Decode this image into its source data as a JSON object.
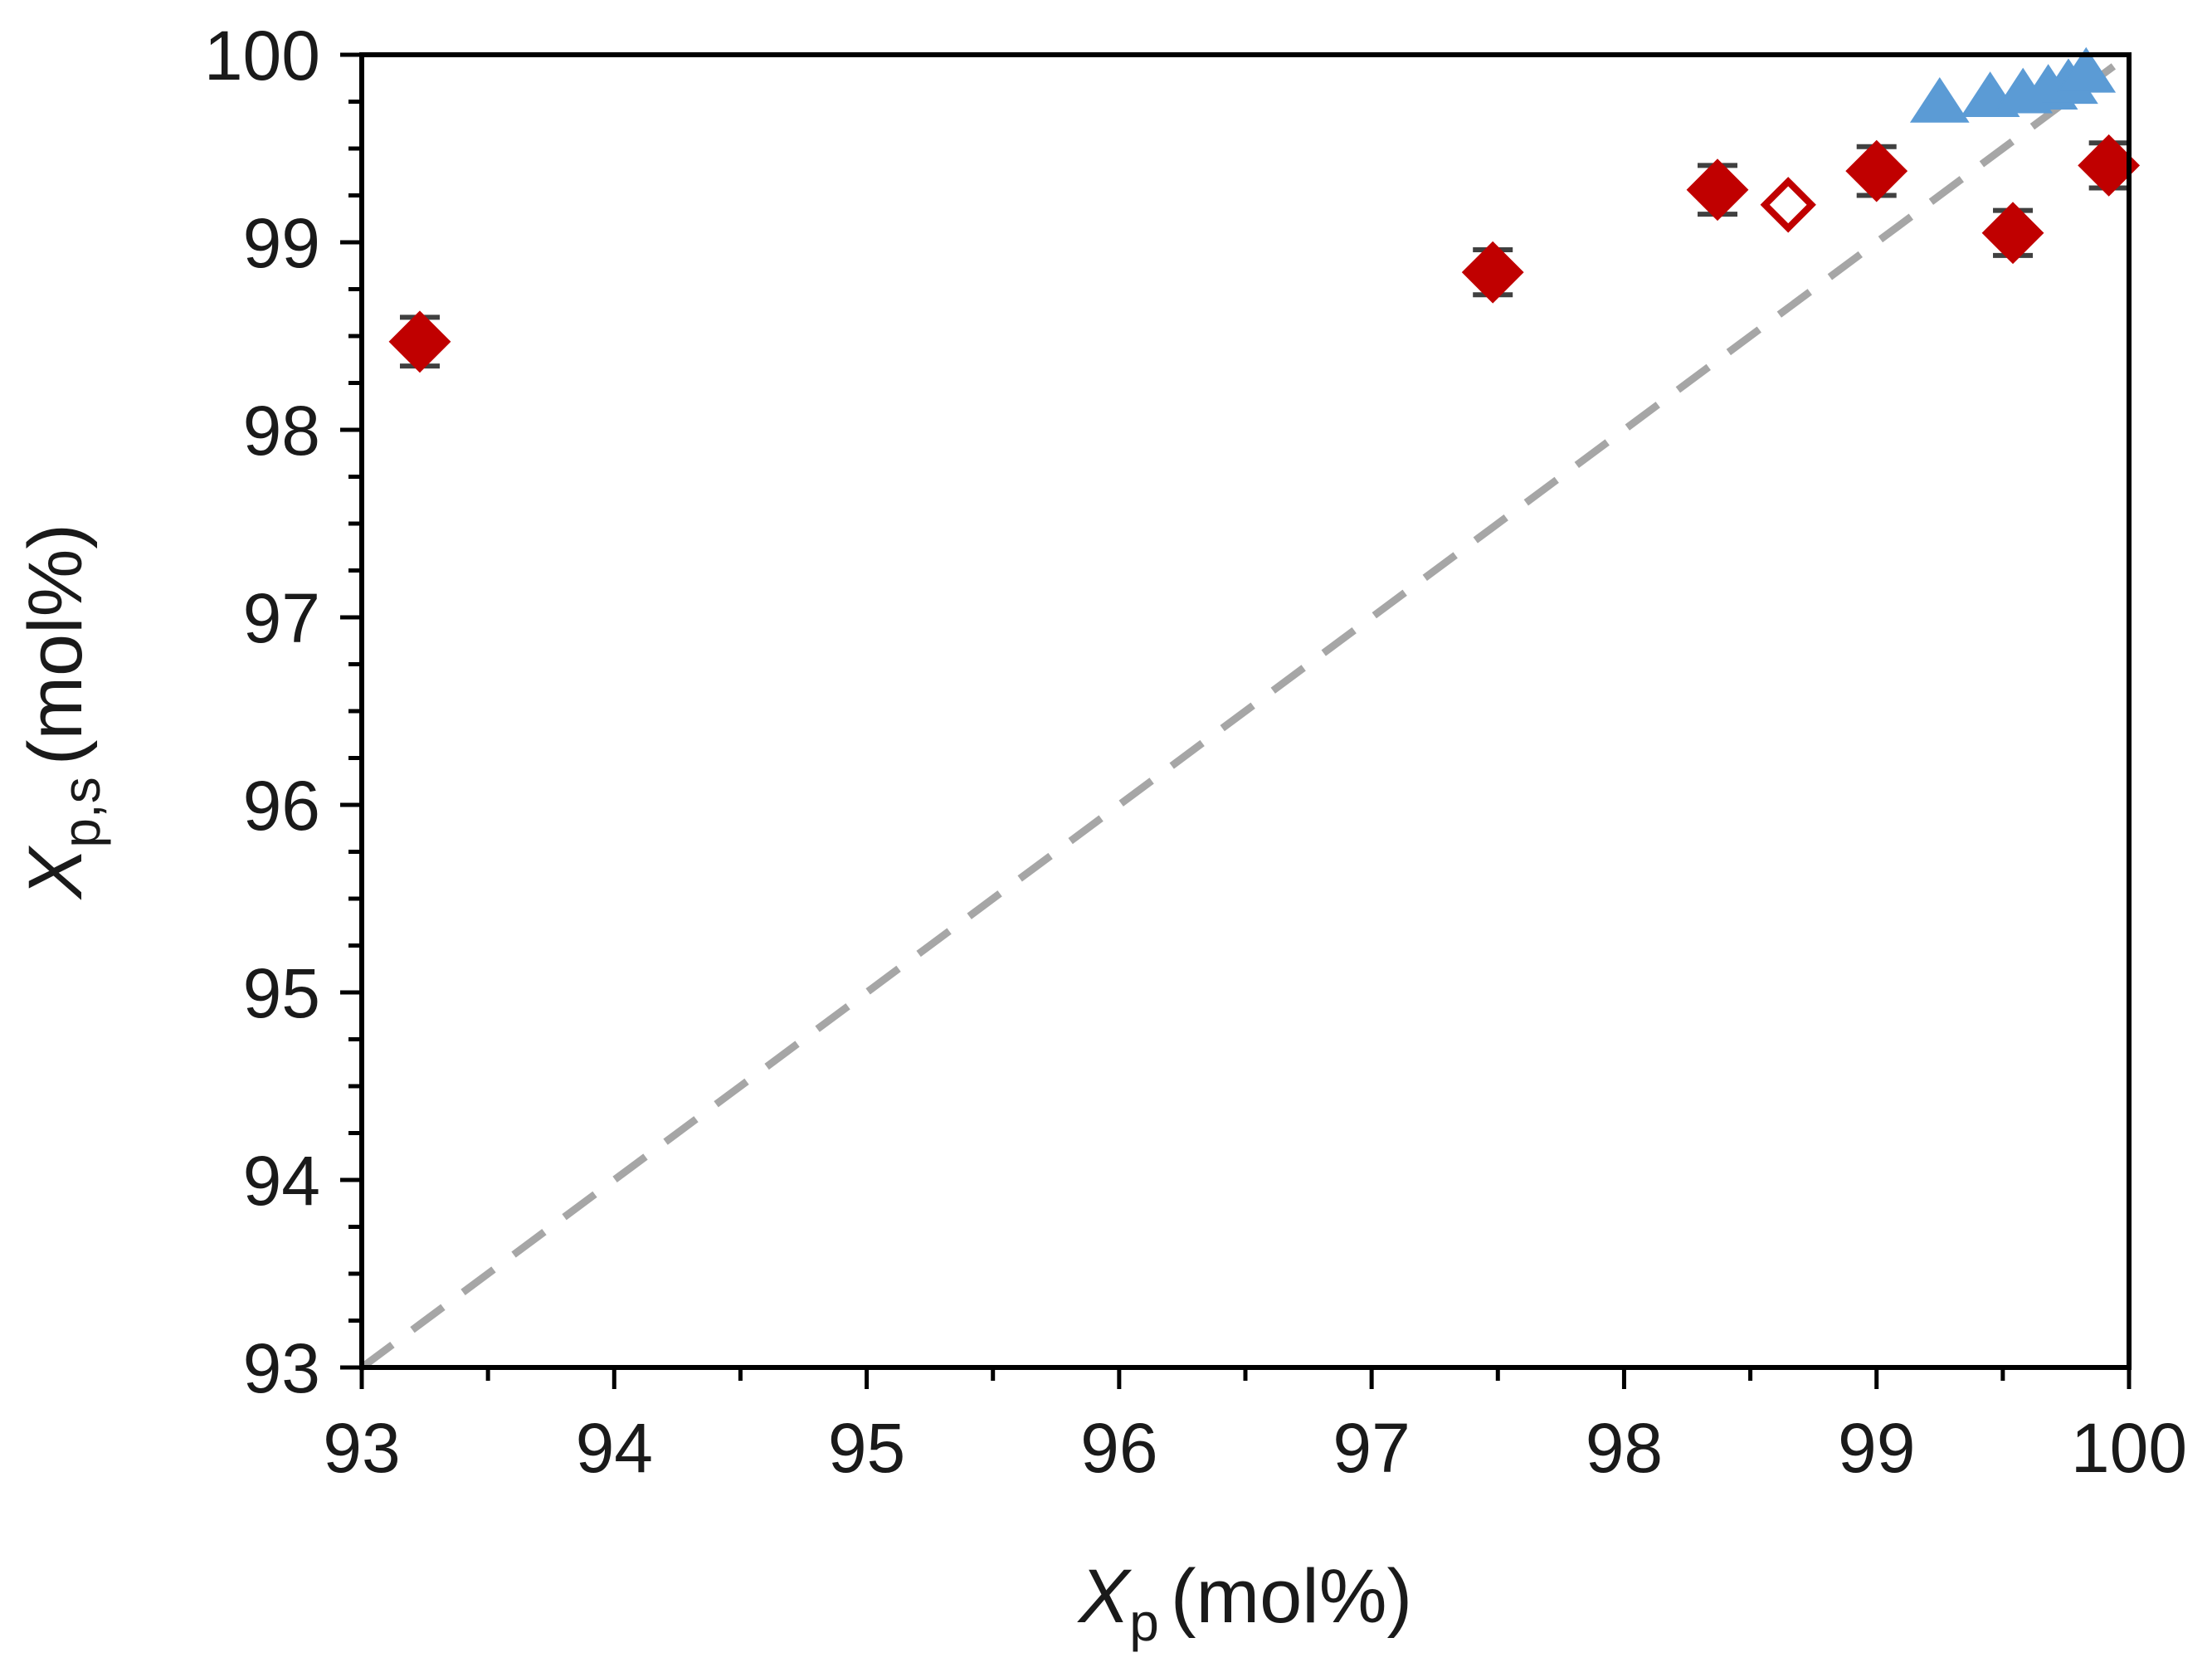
{
  "chart_data": {
    "type": "scatter",
    "title": "",
    "xlabel": {
      "symbol": "X",
      "subscript": "p",
      "unit": "(mol%)"
    },
    "ylabel": {
      "symbol": "X",
      "subscript": "p,s",
      "unit": "(mol%)"
    },
    "xlim": [
      93,
      100
    ],
    "ylim": [
      93,
      100
    ],
    "x_ticks": [
      "93",
      "94",
      "95",
      "96",
      "97",
      "98",
      "99",
      "100"
    ],
    "y_ticks": [
      "93",
      "94",
      "95",
      "96",
      "97",
      "98",
      "99",
      "100"
    ],
    "x_minor_step": 0.5,
    "y_minor_step": 0.25,
    "grid": false,
    "reference_line": {
      "name": "y = x",
      "style": "dashed",
      "color": "#a6a6a6",
      "from": [
        93,
        93
      ],
      "to": [
        100,
        100
      ]
    },
    "series": [
      {
        "name": "filled diamonds",
        "marker": "diamond",
        "filled": true,
        "color": "#c00000",
        "points": [
          {
            "x": 93.23,
            "y": 98.47,
            "err": 0.13
          },
          {
            "x": 97.48,
            "y": 98.84,
            "err": 0.12
          },
          {
            "x": 98.37,
            "y": 99.28,
            "err": 0.13
          },
          {
            "x": 99.0,
            "y": 99.38,
            "err": 0.13
          },
          {
            "x": 99.54,
            "y": 99.05,
            "err": 0.12
          },
          {
            "x": 99.92,
            "y": 99.41,
            "err": 0.12
          }
        ]
      },
      {
        "name": "open diamond",
        "marker": "diamond",
        "filled": false,
        "color": "#c00000",
        "points": [
          {
            "x": 98.65,
            "y": 99.2
          }
        ]
      },
      {
        "name": "triangles",
        "marker": "triangle",
        "filled": true,
        "color": "#5b9bd5",
        "points": [
          {
            "x": 99.25,
            "y": 99.73
          },
          {
            "x": 99.45,
            "y": 99.76
          },
          {
            "x": 99.58,
            "y": 99.78
          },
          {
            "x": 99.68,
            "y": 99.8
          },
          {
            "x": 99.76,
            "y": 99.83
          },
          {
            "x": 99.83,
            "y": 99.89
          }
        ]
      }
    ]
  }
}
